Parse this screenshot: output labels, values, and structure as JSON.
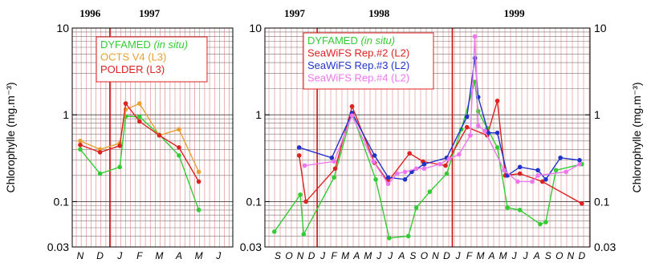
{
  "chart_data": [
    {
      "type": "line",
      "yscale": "log",
      "ylim": [
        0.03,
        10
      ],
      "ylabel": "Chlorophylle (mg.m⁻³)",
      "yticks": [
        "0.03",
        "0.1",
        "1",
        "10"
      ],
      "years": [
        {
          "label": "1996",
          "month_index": 0.5
        },
        {
          "label": "1997",
          "month_index": 3.5
        }
      ],
      "year_boundaries": [
        1.5
      ],
      "categories": [
        "N",
        "D",
        "J",
        "F",
        "M",
        "A",
        "M",
        "J"
      ],
      "legend": [
        {
          "text": "DYFAMED ",
          "italic": "(in situ)",
          "color": "#33cc33"
        },
        {
          "text": "OCTS V4  (L3)",
          "italic": "",
          "color": "#e8a030"
        },
        {
          "text": "POLDER  (L3)",
          "italic": "",
          "color": "#dd2222"
        }
      ],
      "series": [
        {
          "name": "DYFAMED (in situ)",
          "color": "#33cc33",
          "points": [
            [
              0,
              0.4
            ],
            [
              1,
              0.21
            ],
            [
              2,
              0.25
            ],
            [
              2.3,
              0.96
            ],
            [
              3,
              0.95
            ],
            [
              4,
              0.59
            ],
            [
              5,
              0.34
            ],
            [
              6,
              0.08
            ]
          ]
        },
        {
          "name": "OCTS V4 (L3)",
          "color": "#e8a030",
          "points": [
            [
              0,
              0.5
            ],
            [
              1,
              0.4
            ],
            [
              2,
              0.47
            ],
            [
              2.3,
              1.15
            ],
            [
              3,
              1.35
            ],
            [
              4,
              0.58
            ],
            [
              5,
              0.68
            ],
            [
              6,
              0.22
            ]
          ]
        },
        {
          "name": "POLDER (L3)",
          "color": "#dd2222",
          "points": [
            [
              0,
              0.45
            ],
            [
              1,
              0.37
            ],
            [
              2,
              0.44
            ],
            [
              2.3,
              1.35
            ],
            [
              3,
              0.84
            ],
            [
              4,
              0.58
            ],
            [
              5,
              0.42
            ],
            [
              6,
              0.17
            ]
          ]
        }
      ]
    },
    {
      "type": "line",
      "yscale": "log",
      "ylim": [
        0.03,
        10
      ],
      "ylabel": "Chlorophylle (mg.m⁻³)",
      "yticks": [
        "0.03",
        "0.1",
        "1",
        "10"
      ],
      "years": [
        {
          "label": "1997",
          "month_index": 1.5
        },
        {
          "label": "1998",
          "month_index": 9
        },
        {
          "label": "1999",
          "month_index": 21
        }
      ],
      "year_boundaries": [
        3.5,
        15.5
      ],
      "categories": [
        "S",
        "O",
        "N",
        "D",
        "J",
        "F",
        "M",
        "A",
        "M",
        "J",
        "J",
        "A",
        "S",
        "O",
        "N",
        "D",
        "J",
        "F",
        "M",
        "A",
        "M",
        "J",
        "J",
        "A",
        "S",
        "O",
        "N",
        "D"
      ],
      "legend": [
        {
          "text": "DYFAMED ",
          "italic": "(in situ)",
          "color": "#33cc33"
        },
        {
          "text": "SeaWiFS Rep.#2 (L2)",
          "italic": "",
          "color": "#dd2222"
        },
        {
          "text": "SeaWiFS Rep.#3 (L2)",
          "italic": "",
          "color": "#2233cc"
        },
        {
          "text": "SeaWiFS Rep.#4 (L2)",
          "italic": "",
          "color": "#ee77ee"
        }
      ],
      "series": [
        {
          "name": "DYFAMED (in situ)",
          "color": "#33cc33",
          "points": [
            [
              -0.3,
              0.045
            ],
            [
              2,
              0.12
            ],
            [
              2.3,
              0.042
            ],
            [
              5,
              0.19
            ],
            [
              6.6,
              1.05
            ],
            [
              8.7,
              0.18
            ],
            [
              9.9,
              0.038
            ],
            [
              11.6,
              0.04
            ],
            [
              12.3,
              0.085
            ],
            [
              13.5,
              0.13
            ],
            [
              15,
              0.21
            ],
            [
              16.3,
              0.68
            ],
            [
              17.5,
              2.4
            ],
            [
              17.8,
              1.1
            ],
            [
              18.6,
              0.7
            ],
            [
              19.5,
              0.42
            ],
            [
              20.4,
              0.085
            ],
            [
              21.5,
              0.08
            ],
            [
              23.3,
              0.055
            ],
            [
              23.8,
              0.058
            ],
            [
              24.7,
              0.23
            ],
            [
              27,
              0.27
            ]
          ]
        },
        {
          "name": "SeaWiFS Rep.#2 (L2)",
          "color": "#dd2222",
          "points": [
            [
              1.9,
              0.34
            ],
            [
              2.5,
              0.1
            ],
            [
              5.1,
              0.24
            ],
            [
              6.6,
              1.25
            ],
            [
              8.6,
              0.28
            ],
            [
              9.8,
              0.17
            ],
            [
              11.7,
              0.36
            ],
            [
              12.9,
              0.29
            ],
            [
              14.9,
              0.26
            ],
            [
              16.8,
              0.72
            ],
            [
              18.6,
              0.58
            ],
            [
              19.5,
              1.45
            ],
            [
              20.2,
              0.2
            ],
            [
              21.5,
              0.21
            ],
            [
              23.5,
              0.17
            ],
            [
              27,
              0.095
            ]
          ]
        },
        {
          "name": "SeaWiFS Rep.#3 (L2)",
          "color": "#2233cc",
          "points": [
            [
              1.9,
              0.42
            ],
            [
              4.8,
              0.32
            ],
            [
              6.6,
              1.05
            ],
            [
              8.6,
              0.34
            ],
            [
              9.8,
              0.19
            ],
            [
              11.3,
              0.18
            ],
            [
              11.9,
              0.22
            ],
            [
              13.0,
              0.27
            ],
            [
              15.0,
              0.32
            ],
            [
              16.8,
              0.95
            ],
            [
              17.5,
              4.5
            ],
            [
              17.8,
              1.6
            ],
            [
              18.7,
              0.62
            ],
            [
              19.5,
              0.62
            ],
            [
              20.4,
              0.2
            ],
            [
              21.5,
              0.25
            ],
            [
              23.1,
              0.23
            ],
            [
              23.8,
              0.18
            ],
            [
              25.1,
              0.32
            ],
            [
              26.8,
              0.3
            ]
          ]
        },
        {
          "name": "SeaWiFS Rep.#4 (L2)",
          "color": "#ee77ee",
          "points": [
            [
              2.4,
              0.26
            ],
            [
              5,
              0.29
            ],
            [
              6.6,
              0.98
            ],
            [
              8.5,
              0.29
            ],
            [
              9.8,
              0.16
            ],
            [
              10.6,
              0.21
            ],
            [
              11.3,
              0.22
            ],
            [
              12.3,
              0.24
            ],
            [
              13.0,
              0.24
            ],
            [
              14.4,
              0.27
            ],
            [
              15.2,
              0.31
            ],
            [
              16.1,
              0.35
            ],
            [
              17.1,
              0.58
            ],
            [
              17.5,
              8.0
            ],
            [
              17.8,
              0.75
            ],
            [
              18.4,
              0.65
            ],
            [
              20.1,
              0.23
            ],
            [
              21.3,
              0.17
            ],
            [
              22.6,
              0.17
            ],
            [
              23.1,
              0.2
            ],
            [
              25.6,
              0.22
            ],
            [
              26.8,
              0.27
            ]
          ]
        }
      ]
    }
  ]
}
